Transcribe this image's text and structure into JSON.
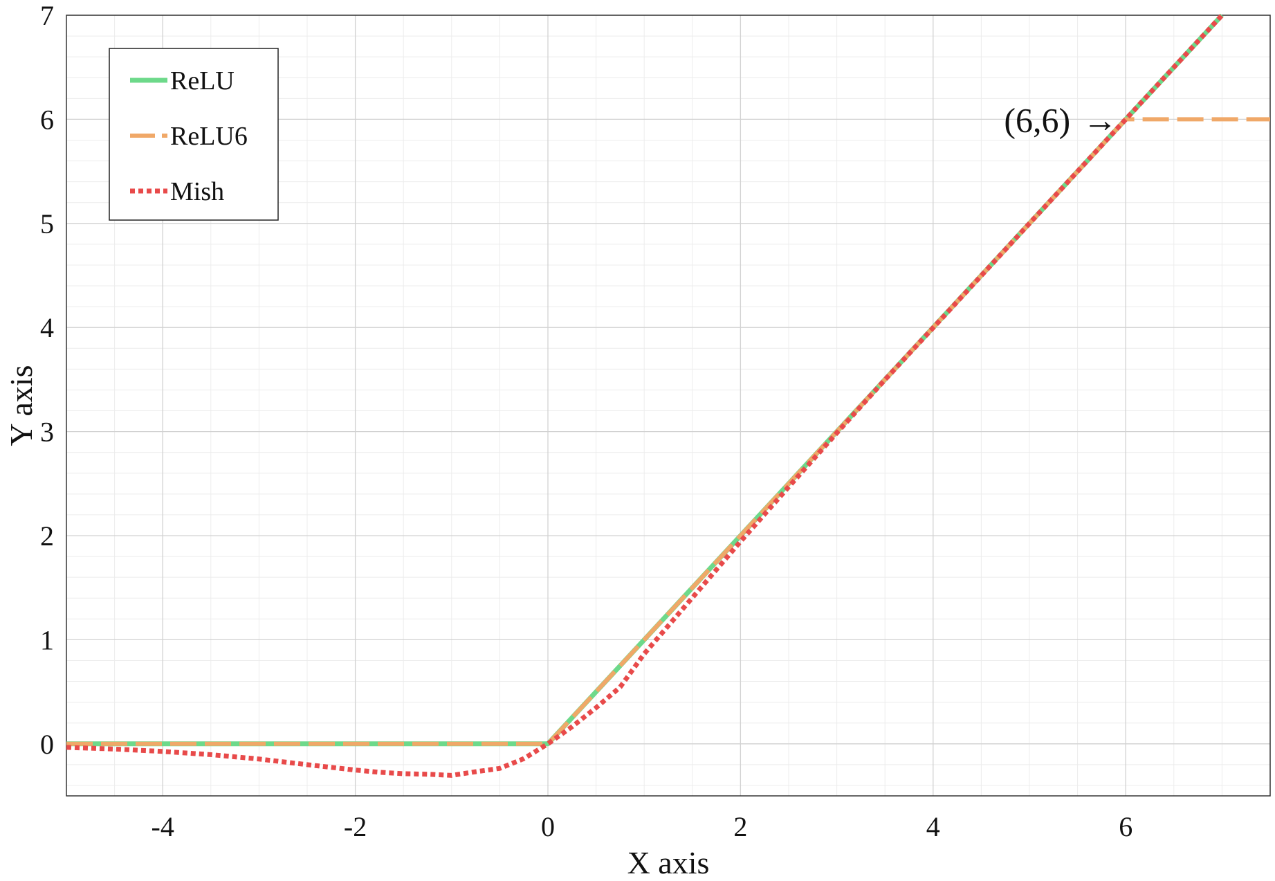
{
  "chart_data": {
    "type": "line",
    "xlabel": "X axis",
    "ylabel": "Y axis",
    "xlim": [
      -5,
      7.5
    ],
    "ylim": [
      -0.5,
      7
    ],
    "xticks": [
      -4,
      -2,
      0,
      2,
      4,
      6
    ],
    "yticks": [
      0,
      1,
      2,
      3,
      4,
      5,
      6,
      7
    ],
    "grid": true,
    "minor_grid": true,
    "legend_position": "top-left",
    "series": [
      {
        "name": "ReLU",
        "color": "#6dd98a",
        "style": "solid",
        "x": [
          -5,
          0,
          7
        ],
        "y": [
          0,
          0,
          7
        ]
      },
      {
        "name": "ReLU6",
        "color": "#f0a868",
        "style": "dashed",
        "x": [
          -5,
          0,
          6,
          7.5
        ],
        "y": [
          0,
          0,
          6,
          6
        ]
      },
      {
        "name": "Mish",
        "color": "#e84a4a",
        "style": "dotted",
        "x": [
          -5,
          -4.5,
          -4,
          -3.5,
          -3,
          -2.5,
          -2,
          -1.75,
          -1.5,
          -1.25,
          -1,
          -0.75,
          -0.5,
          -0.25,
          0,
          0.25,
          0.5,
          0.75,
          1,
          1.5,
          2,
          2.5,
          3,
          3.5,
          4,
          5,
          6,
          7
        ],
        "y": [
          -0.034,
          -0.05,
          -0.073,
          -0.104,
          -0.146,
          -0.2,
          -0.252,
          -0.273,
          -0.287,
          -0.292,
          -0.303,
          -0.268,
          -0.236,
          -0.142,
          0,
          0.164,
          0.347,
          0.545,
          0.865,
          1.404,
          1.944,
          2.468,
          2.987,
          3.498,
          3.997,
          4.999,
          6.0,
          7.0
        ]
      }
    ],
    "annotations": [
      {
        "text": "(6,6)",
        "arrow": "→",
        "x": 6,
        "y": 6
      }
    ]
  }
}
